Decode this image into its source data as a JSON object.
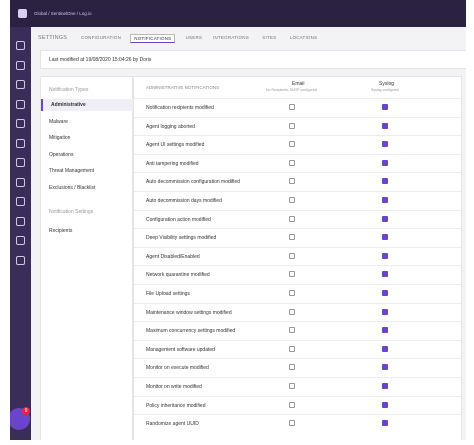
{
  "header": {
    "breadcrumb": "Global / SentinelOne / Log.io"
  },
  "tabs": {
    "section": "SETTINGS",
    "items": [
      "CONFIGURATION",
      "NOTIFICATIONS",
      "USERS",
      "INTEGRATIONS",
      "SITES",
      "LOCATIONS"
    ],
    "active": 1
  },
  "info": "Last modified at 19/08/2020 15:04:26 by Doris",
  "left_panel": {
    "types_title": "Notification Types",
    "types": [
      "Administrative",
      "Malware",
      "Mitigation",
      "Operations",
      "Threat Management",
      "Exclusions / Blacklist"
    ],
    "active": 0,
    "settings_title": "Notification Settings",
    "settings": [
      "Recipients"
    ]
  },
  "table": {
    "title": "ADMINISTRATIVE NOTIFICATIONS",
    "email": "Email",
    "email_sub": "No Recipients, SMTP configured",
    "syslog": "Syslog",
    "syslog_sub": "Syslog configured",
    "rows": [
      {
        "label": "Notification recipients modified",
        "email": false,
        "syslog": true
      },
      {
        "label": "Agent logging aborted",
        "email": false,
        "syslog": true
      },
      {
        "label": "Agent UI settings modified",
        "email": false,
        "syslog": true
      },
      {
        "label": "Anti tampering modified",
        "email": false,
        "syslog": true
      },
      {
        "label": "Auto decommission configuration modified",
        "email": false,
        "syslog": true
      },
      {
        "label": "Auto decommission days modified",
        "email": false,
        "syslog": true
      },
      {
        "label": "Configuration action modified",
        "email": false,
        "syslog": true
      },
      {
        "label": "Deep Visibility settings modified",
        "email": false,
        "syslog": true
      },
      {
        "label": "Agent Disabled/Enabled",
        "email": false,
        "syslog": true
      },
      {
        "label": "Network quarantine modified",
        "email": false,
        "syslog": true
      },
      {
        "label": "File Upload settings",
        "email": false,
        "syslog": true
      },
      {
        "label": "Maintenance window settings modified",
        "email": false,
        "syslog": true
      },
      {
        "label": "Maximum concurrency settings modified",
        "email": false,
        "syslog": true
      },
      {
        "label": "Management software updated",
        "email": false,
        "syslog": true
      },
      {
        "label": "Monitor on execute modified",
        "email": false,
        "syslog": true
      },
      {
        "label": "Monitor on write modified",
        "email": false,
        "syslog": true
      },
      {
        "label": "Policy inheritance modified",
        "email": false,
        "syslog": true
      },
      {
        "label": "Randomize agent UUID",
        "email": false,
        "syslog": true
      }
    ]
  },
  "badge": "9"
}
